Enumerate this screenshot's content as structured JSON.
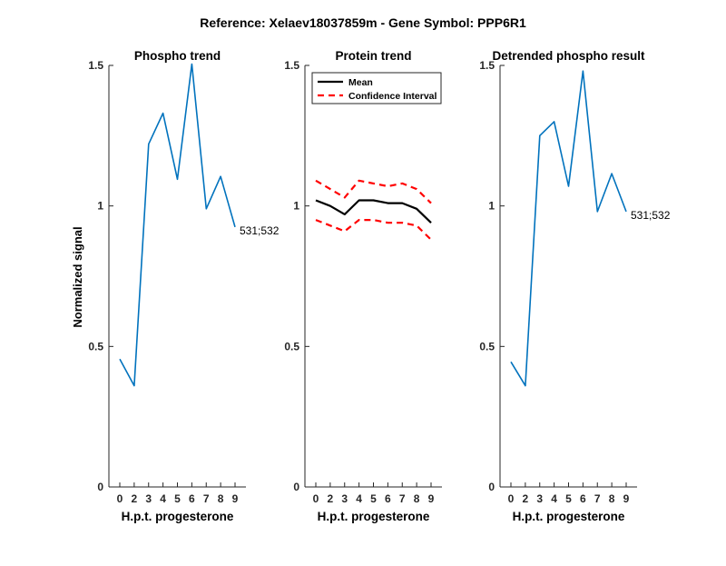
{
  "figure": {
    "suptitle": "Reference:  Xelaev18037859m - Gene Symbol:  PPP6R1",
    "ylabel": "Normalized signal"
  },
  "colors": {
    "phospho": "#0072BD",
    "mean": "#000000",
    "ci": "#FF0000",
    "axis": "#262626"
  },
  "chart_data": [
    {
      "type": "line",
      "title": "Phospho trend",
      "xlabel": "H.p.t. progesterone",
      "ylabel": "Normalized signal",
      "categories": [
        "0",
        "2",
        "3",
        "4",
        "5",
        "6",
        "7",
        "8",
        "9"
      ],
      "ylim": [
        0,
        1.5
      ],
      "yticks": [
        "0",
        "0.5",
        "1",
        "1.5"
      ],
      "series": [
        {
          "name": "531;532",
          "values": [
            0.455,
            0.36,
            1.22,
            1.33,
            1.095,
            1.505,
            0.99,
            1.105,
            0.925
          ]
        }
      ],
      "annotations": [
        "531;532"
      ]
    },
    {
      "type": "line",
      "title": "Protein trend",
      "xlabel": "H.p.t. progesterone",
      "categories": [
        "0",
        "2",
        "3",
        "4",
        "5",
        "6",
        "7",
        "8",
        "9"
      ],
      "ylim": [
        0,
        1.5
      ],
      "yticks": [
        "0",
        "0.5",
        "1",
        "1.5"
      ],
      "legend_position": "top-left",
      "series": [
        {
          "name": "Mean",
          "values": [
            1.02,
            1.0,
            0.97,
            1.02,
            1.02,
            1.01,
            1.01,
            0.99,
            0.94
          ]
        },
        {
          "name": "Confidence Interval",
          "values": [
            1.09,
            1.06,
            1.03,
            1.09,
            1.08,
            1.07,
            1.08,
            1.06,
            1.01
          ]
        },
        {
          "values": [
            0.95,
            0.93,
            0.91,
            0.95,
            0.95,
            0.94,
            0.94,
            0.93,
            0.88
          ]
        }
      ]
    },
    {
      "type": "line",
      "title": "Detrended phospho result",
      "xlabel": "H.p.t. progesterone",
      "categories": [
        "0",
        "2",
        "3",
        "4",
        "5",
        "6",
        "7",
        "8",
        "9"
      ],
      "ylim": [
        0,
        1.5
      ],
      "yticks": [
        "0",
        "0.5",
        "1",
        "1.5"
      ],
      "series": [
        {
          "name": "531;532",
          "values": [
            0.445,
            0.36,
            1.25,
            1.3,
            1.07,
            1.48,
            0.98,
            1.115,
            0.98
          ]
        }
      ],
      "annotations": [
        "531;532"
      ]
    }
  ]
}
